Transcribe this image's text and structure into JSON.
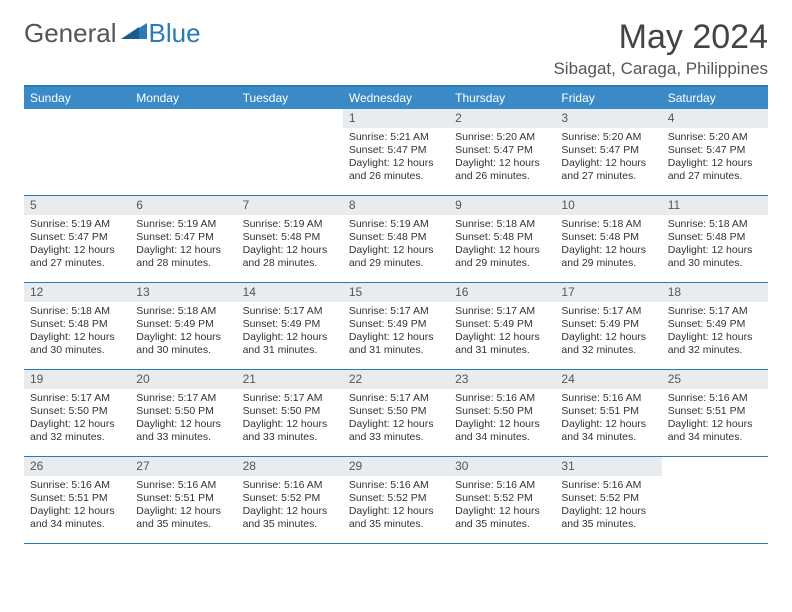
{
  "logo": {
    "text1": "General",
    "text2": "Blue"
  },
  "title": "May 2024",
  "location": "Sibagat, Caraga, Philippines",
  "colors": {
    "header_bg": "#3a8ac8",
    "border": "#2a7ab8",
    "daynum_bg": "#e9ecef",
    "text": "#333333",
    "title_text": "#444444"
  },
  "day_headers": [
    "Sunday",
    "Monday",
    "Tuesday",
    "Wednesday",
    "Thursday",
    "Friday",
    "Saturday"
  ],
  "weeks": [
    [
      {
        "n": "",
        "sr": "",
        "ss": "",
        "dl": ""
      },
      {
        "n": "",
        "sr": "",
        "ss": "",
        "dl": ""
      },
      {
        "n": "",
        "sr": "",
        "ss": "",
        "dl": ""
      },
      {
        "n": "1",
        "sr": "Sunrise: 5:21 AM",
        "ss": "Sunset: 5:47 PM",
        "dl": "Daylight: 12 hours and 26 minutes."
      },
      {
        "n": "2",
        "sr": "Sunrise: 5:20 AM",
        "ss": "Sunset: 5:47 PM",
        "dl": "Daylight: 12 hours and 26 minutes."
      },
      {
        "n": "3",
        "sr": "Sunrise: 5:20 AM",
        "ss": "Sunset: 5:47 PM",
        "dl": "Daylight: 12 hours and 27 minutes."
      },
      {
        "n": "4",
        "sr": "Sunrise: 5:20 AM",
        "ss": "Sunset: 5:47 PM",
        "dl": "Daylight: 12 hours and 27 minutes."
      }
    ],
    [
      {
        "n": "5",
        "sr": "Sunrise: 5:19 AM",
        "ss": "Sunset: 5:47 PM",
        "dl": "Daylight: 12 hours and 27 minutes."
      },
      {
        "n": "6",
        "sr": "Sunrise: 5:19 AM",
        "ss": "Sunset: 5:47 PM",
        "dl": "Daylight: 12 hours and 28 minutes."
      },
      {
        "n": "7",
        "sr": "Sunrise: 5:19 AM",
        "ss": "Sunset: 5:48 PM",
        "dl": "Daylight: 12 hours and 28 minutes."
      },
      {
        "n": "8",
        "sr": "Sunrise: 5:19 AM",
        "ss": "Sunset: 5:48 PM",
        "dl": "Daylight: 12 hours and 29 minutes."
      },
      {
        "n": "9",
        "sr": "Sunrise: 5:18 AM",
        "ss": "Sunset: 5:48 PM",
        "dl": "Daylight: 12 hours and 29 minutes."
      },
      {
        "n": "10",
        "sr": "Sunrise: 5:18 AM",
        "ss": "Sunset: 5:48 PM",
        "dl": "Daylight: 12 hours and 29 minutes."
      },
      {
        "n": "11",
        "sr": "Sunrise: 5:18 AM",
        "ss": "Sunset: 5:48 PM",
        "dl": "Daylight: 12 hours and 30 minutes."
      }
    ],
    [
      {
        "n": "12",
        "sr": "Sunrise: 5:18 AM",
        "ss": "Sunset: 5:48 PM",
        "dl": "Daylight: 12 hours and 30 minutes."
      },
      {
        "n": "13",
        "sr": "Sunrise: 5:18 AM",
        "ss": "Sunset: 5:49 PM",
        "dl": "Daylight: 12 hours and 30 minutes."
      },
      {
        "n": "14",
        "sr": "Sunrise: 5:17 AM",
        "ss": "Sunset: 5:49 PM",
        "dl": "Daylight: 12 hours and 31 minutes."
      },
      {
        "n": "15",
        "sr": "Sunrise: 5:17 AM",
        "ss": "Sunset: 5:49 PM",
        "dl": "Daylight: 12 hours and 31 minutes."
      },
      {
        "n": "16",
        "sr": "Sunrise: 5:17 AM",
        "ss": "Sunset: 5:49 PM",
        "dl": "Daylight: 12 hours and 31 minutes."
      },
      {
        "n": "17",
        "sr": "Sunrise: 5:17 AM",
        "ss": "Sunset: 5:49 PM",
        "dl": "Daylight: 12 hours and 32 minutes."
      },
      {
        "n": "18",
        "sr": "Sunrise: 5:17 AM",
        "ss": "Sunset: 5:49 PM",
        "dl": "Daylight: 12 hours and 32 minutes."
      }
    ],
    [
      {
        "n": "19",
        "sr": "Sunrise: 5:17 AM",
        "ss": "Sunset: 5:50 PM",
        "dl": "Daylight: 12 hours and 32 minutes."
      },
      {
        "n": "20",
        "sr": "Sunrise: 5:17 AM",
        "ss": "Sunset: 5:50 PM",
        "dl": "Daylight: 12 hours and 33 minutes."
      },
      {
        "n": "21",
        "sr": "Sunrise: 5:17 AM",
        "ss": "Sunset: 5:50 PM",
        "dl": "Daylight: 12 hours and 33 minutes."
      },
      {
        "n": "22",
        "sr": "Sunrise: 5:17 AM",
        "ss": "Sunset: 5:50 PM",
        "dl": "Daylight: 12 hours and 33 minutes."
      },
      {
        "n": "23",
        "sr": "Sunrise: 5:16 AM",
        "ss": "Sunset: 5:50 PM",
        "dl": "Daylight: 12 hours and 34 minutes."
      },
      {
        "n": "24",
        "sr": "Sunrise: 5:16 AM",
        "ss": "Sunset: 5:51 PM",
        "dl": "Daylight: 12 hours and 34 minutes."
      },
      {
        "n": "25",
        "sr": "Sunrise: 5:16 AM",
        "ss": "Sunset: 5:51 PM",
        "dl": "Daylight: 12 hours and 34 minutes."
      }
    ],
    [
      {
        "n": "26",
        "sr": "Sunrise: 5:16 AM",
        "ss": "Sunset: 5:51 PM",
        "dl": "Daylight: 12 hours and 34 minutes."
      },
      {
        "n": "27",
        "sr": "Sunrise: 5:16 AM",
        "ss": "Sunset: 5:51 PM",
        "dl": "Daylight: 12 hours and 35 minutes."
      },
      {
        "n": "28",
        "sr": "Sunrise: 5:16 AM",
        "ss": "Sunset: 5:52 PM",
        "dl": "Daylight: 12 hours and 35 minutes."
      },
      {
        "n": "29",
        "sr": "Sunrise: 5:16 AM",
        "ss": "Sunset: 5:52 PM",
        "dl": "Daylight: 12 hours and 35 minutes."
      },
      {
        "n": "30",
        "sr": "Sunrise: 5:16 AM",
        "ss": "Sunset: 5:52 PM",
        "dl": "Daylight: 12 hours and 35 minutes."
      },
      {
        "n": "31",
        "sr": "Sunrise: 5:16 AM",
        "ss": "Sunset: 5:52 PM",
        "dl": "Daylight: 12 hours and 35 minutes."
      },
      {
        "n": "",
        "sr": "",
        "ss": "",
        "dl": ""
      }
    ]
  ]
}
